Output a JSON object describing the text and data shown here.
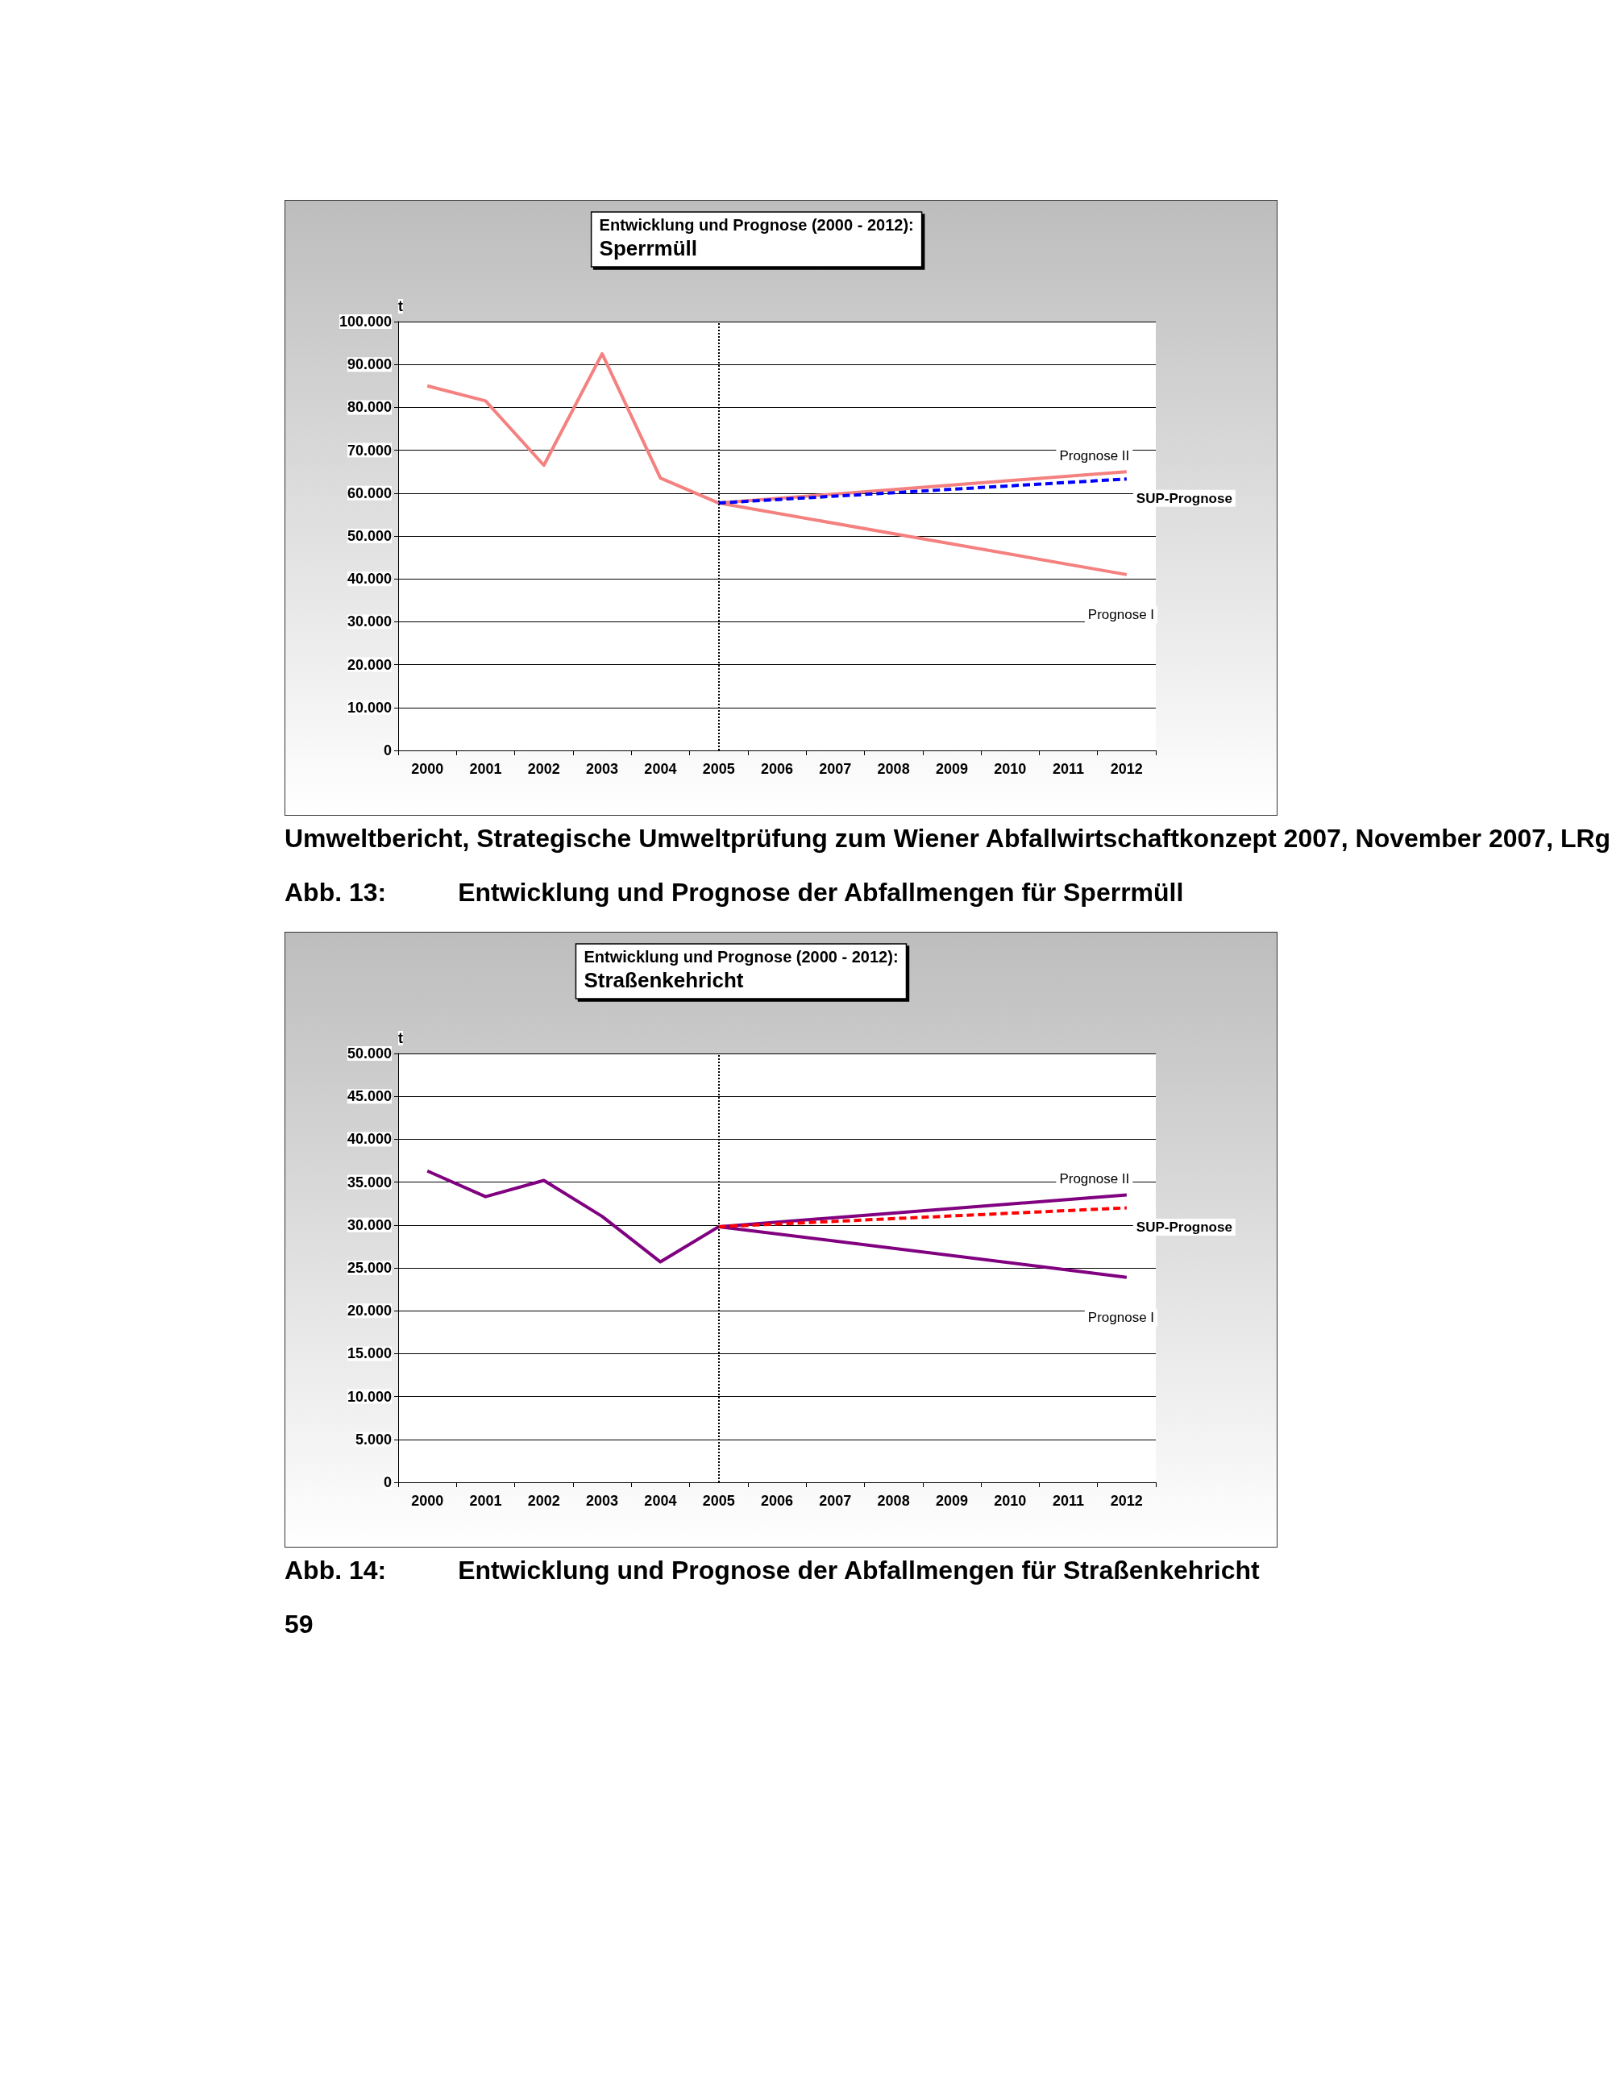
{
  "chart_data": [
    {
      "type": "line",
      "title": "Entwicklung und Prognose (2000 - 2012):",
      "subtitle": "Sperrmüll",
      "ylabel": "t",
      "categories": [
        "2000",
        "2001",
        "2002",
        "2003",
        "2004",
        "2005",
        "2006",
        "2007",
        "2008",
        "2009",
        "2010",
        "2011",
        "2012"
      ],
      "series": [
        {
          "color": "#f4817f",
          "values": [
            85000,
            81500,
            66500,
            92500,
            63500,
            57700,
            null,
            null,
            null,
            null,
            null,
            null,
            65000
          ]
        },
        {
          "name": "SUP-Prognose",
          "color": "#0000ff",
          "line_style": "dashed",
          "values": [
            null,
            null,
            null,
            null,
            null,
            57700,
            null,
            null,
            null,
            null,
            null,
            null,
            63300
          ]
        },
        {
          "name": "Prognose I",
          "color": "#f4817f",
          "values": [
            null,
            null,
            null,
            null,
            null,
            57700,
            null,
            null,
            null,
            null,
            null,
            null,
            41000
          ]
        }
      ],
      "ylim": [
        0,
        100000
      ],
      "yticks": [
        {
          "value": 0,
          "label": "0"
        },
        {
          "value": 10000,
          "label": "10.000"
        },
        {
          "value": 20000,
          "label": "20.000"
        },
        {
          "value": 30000,
          "label": "30.000"
        },
        {
          "value": 40000,
          "label": "40.000"
        },
        {
          "value": 50000,
          "label": "50.000"
        },
        {
          "value": 60000,
          "label": "60.000"
        },
        {
          "value": 70000,
          "label": "70.000"
        },
        {
          "value": 80000,
          "label": "80.000"
        },
        {
          "value": 90000,
          "label": "90.000"
        },
        {
          "value": 100000,
          "label": "100.000"
        }
      ],
      "ref_lines": [
        {
          "axis": "x",
          "value": "2005",
          "color": "#000000",
          "line_style": "dotted"
        }
      ],
      "grid": "y",
      "legend": false,
      "marker": "none",
      "line_style": "solid",
      "annotations": [
        {
          "text": "Prognose II",
          "x": "2012",
          "y": 65000
        },
        "Umweltbericht, Strategische Umweltprüfung zum Wiener Abfallwirtschaftkonzept 2007, November 2007, LRg",
        "Abb. 13:          Entwicklung und Prognose der Abfallmengen für Sperrmüll"
      ]
    },
    {
      "type": "line",
      "title": "Entwicklung und Prognose (2000 - 2012):",
      "subtitle": "Straßenkehricht",
      "ylabel": "t",
      "categories": [
        "2000",
        "2001",
        "2002",
        "2003",
        "2004",
        "2005",
        "2006",
        "2007",
        "2008",
        "2009",
        "2010",
        "2011",
        "2012"
      ],
      "series": [
        {
          "color": "#800080",
          "values": [
            36300,
            33300,
            35200,
            31000,
            25700,
            29800,
            null,
            null,
            null,
            null,
            null,
            null,
            33500
          ]
        },
        {
          "name": "SUP-Prognose",
          "color": "#ff0000",
          "line_style": "dashed",
          "values": [
            null,
            null,
            null,
            null,
            null,
            29800,
            null,
            null,
            null,
            null,
            null,
            null,
            32000
          ]
        },
        {
          "name": "Prognose I",
          "color": "#800080",
          "values": [
            null,
            null,
            null,
            null,
            null,
            29800,
            null,
            null,
            null,
            null,
            null,
            null,
            23900
          ]
        }
      ],
      "ylim": [
        0,
        50000
      ],
      "yticks": [
        {
          "value": 0,
          "label": "0"
        },
        {
          "value": 5000,
          "label": "5.000"
        },
        {
          "value": 10000,
          "label": "10.000"
        },
        {
          "value": 15000,
          "label": "15.000"
        },
        {
          "value": 20000,
          "label": "20.000"
        },
        {
          "value": 25000,
          "label": "25.000"
        },
        {
          "value": 30000,
          "label": "30.000"
        },
        {
          "value": 35000,
          "label": "35.000"
        },
        {
          "value": 40000,
          "label": "40.000"
        },
        {
          "value": 45000,
          "label": "45.000"
        },
        {
          "value": 50000,
          "label": "50.000"
        }
      ],
      "ref_lines": [
        {
          "axis": "x",
          "value": "2005",
          "color": "#000000",
          "line_style": "dotted"
        }
      ],
      "grid": "y",
      "legend": false,
      "marker": "none",
      "line_style": "solid",
      "annotations": [
        {
          "text": "Prognose II",
          "x": "2012",
          "y": 33500
        },
        "Abb. 14:          Entwicklung und Prognose der Abfallmengen für Straßenkehricht",
        "59"
      ]
    }
  ]
}
